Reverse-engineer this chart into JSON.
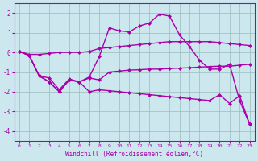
{
  "xlabel": "Windchill (Refroidissement éolien,°C)",
  "bg_color": "#cce8ee",
  "line_color": "#aa00aa",
  "grid_color": "#99bbbb",
  "ylim": [
    -4.5,
    2.5
  ],
  "xlim": [
    -0.5,
    23.5
  ],
  "yticks": [
    -4,
    -3,
    -2,
    -1,
    0,
    1,
    2
  ],
  "xticks": [
    0,
    1,
    2,
    3,
    4,
    5,
    6,
    7,
    8,
    9,
    10,
    11,
    12,
    13,
    14,
    15,
    16,
    17,
    18,
    19,
    20,
    21,
    22,
    23
  ],
  "series": [
    {
      "x": [
        0,
        1,
        2,
        3,
        4,
        5,
        6,
        7,
        8,
        9,
        10,
        11,
        12,
        13,
        14,
        15,
        16,
        17,
        18,
        19,
        20,
        21,
        22,
        23
      ],
      "y": [
        0.05,
        -0.1,
        -0.1,
        -0.05,
        0.0,
        0.0,
        0.0,
        0.05,
        0.2,
        0.25,
        0.3,
        0.35,
        0.4,
        0.45,
        0.5,
        0.55,
        0.55,
        0.55,
        0.55,
        0.55,
        0.5,
        0.45,
        0.4,
        0.35
      ]
    },
    {
      "x": [
        0,
        1,
        2,
        3,
        4,
        5,
        6,
        7,
        8,
        9,
        10,
        11,
        12,
        13,
        14,
        15,
        16,
        17,
        18,
        19,
        20,
        21,
        22,
        23
      ],
      "y": [
        0.05,
        -0.15,
        -1.2,
        -1.3,
        -1.9,
        -1.35,
        -1.5,
        -1.25,
        -0.2,
        1.25,
        1.1,
        1.05,
        1.35,
        1.5,
        1.95,
        1.85,
        0.9,
        0.3,
        -0.4,
        -0.85,
        -0.85,
        -0.6,
        -2.45,
        -3.65
      ]
    },
    {
      "x": [
        0,
        1,
        2,
        3,
        4,
        5,
        6,
        7,
        8,
        9,
        10,
        11,
        12,
        13,
        14,
        15,
        16,
        17,
        18,
        19,
        20,
        21,
        22,
        23
      ],
      "y": [
        0.05,
        -0.15,
        -1.2,
        -1.5,
        -2.0,
        -1.4,
        -1.5,
        -1.3,
        -1.4,
        -1.0,
        -0.95,
        -0.9,
        -0.88,
        -0.85,
        -0.85,
        -0.82,
        -0.8,
        -0.78,
        -0.75,
        -0.72,
        -0.7,
        -0.7,
        -0.65,
        -0.6
      ]
    },
    {
      "x": [
        0,
        1,
        2,
        3,
        4,
        5,
        6,
        7,
        8,
        9,
        10,
        11,
        12,
        13,
        14,
        15,
        16,
        17,
        18,
        19,
        20,
        21,
        22,
        23
      ],
      "y": [
        0.05,
        -0.15,
        -1.2,
        -1.5,
        -2.0,
        -1.4,
        -1.5,
        -2.0,
        -1.9,
        -1.95,
        -2.0,
        -2.05,
        -2.1,
        -2.15,
        -2.2,
        -2.25,
        -2.3,
        -2.35,
        -2.4,
        -2.45,
        -2.15,
        -2.6,
        -2.2,
        -3.65
      ]
    }
  ],
  "marker": "D",
  "markersize": 2.5,
  "linewidth": 1.0
}
